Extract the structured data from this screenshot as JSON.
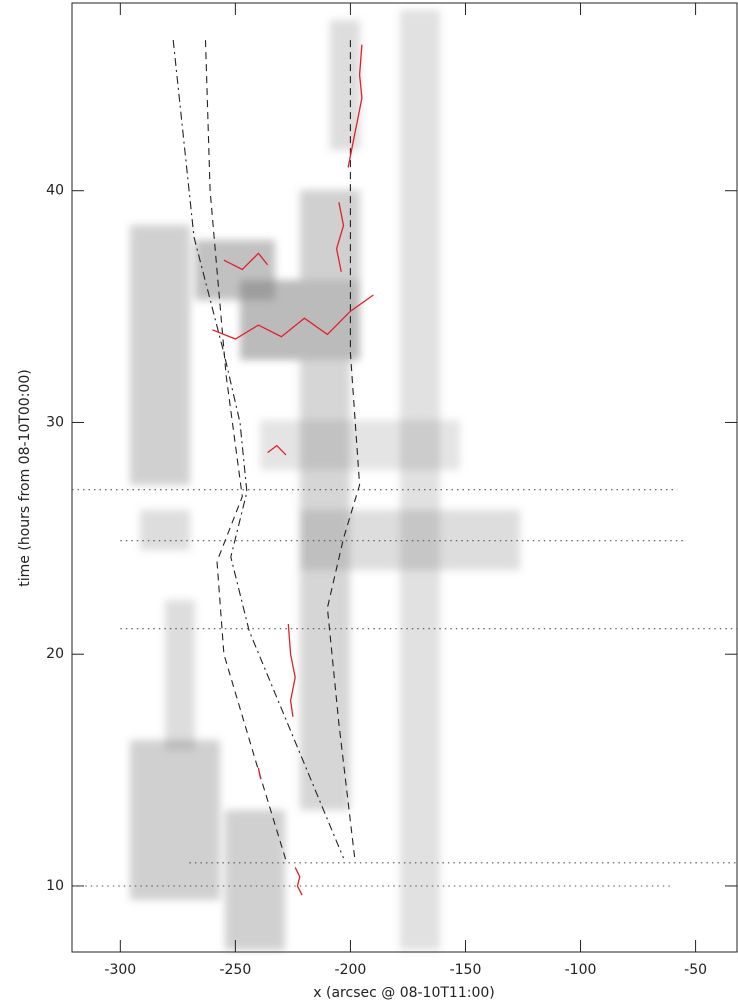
{
  "chart_data": {
    "type": "line",
    "xlabel": "x (arcsec @ 08-10T11:00)",
    "ylabel": "time (hours from 08-10T00:00)",
    "xlim": [
      -321,
      -32
    ],
    "ylim": [
      7.15,
      48.1
    ],
    "xticks": [
      -300,
      -250,
      -200,
      -150,
      -100,
      -50
    ],
    "yticks": [
      10,
      20,
      30,
      40
    ],
    "series": [
      {
        "style": "dotted",
        "color": "#555555",
        "x": [
          -321,
          -58
        ],
        "y": [
          27.1,
          27.1
        ]
      },
      {
        "style": "dotted",
        "color": "#555555",
        "x": [
          -300,
          -55
        ],
        "y": [
          24.9,
          24.9
        ]
      },
      {
        "style": "dotted",
        "color": "#555555",
        "x": [
          -300,
          -30
        ],
        "y": [
          21.1,
          21.1
        ]
      },
      {
        "style": "dotted",
        "color": "#555555",
        "x": [
          -270,
          -32
        ],
        "y": [
          11.0,
          11.0
        ]
      },
      {
        "style": "dotted",
        "color": "#555555",
        "x": [
          -320,
          -60
        ],
        "y": [
          10.0,
          10.0
        ]
      },
      {
        "style": "dashdot",
        "color": "#222222",
        "x": [
          -277,
          -268,
          -255,
          -248,
          -245,
          -252,
          -244,
          -203
        ],
        "y": [
          46.5,
          38,
          33,
          30,
          27,
          24.2,
          21,
          11.2
        ]
      },
      {
        "style": "dashed",
        "color": "#222222",
        "x": [
          -263,
          -261,
          -254,
          -247,
          -258,
          -255,
          -240,
          -228
        ],
        "y": [
          46.5,
          40,
          32,
          26.8,
          24,
          20,
          15,
          11.1
        ]
      },
      {
        "style": "dashed",
        "color": "#222222",
        "x": [
          -200,
          -200,
          -196,
          -203,
          -210,
          -205,
          -198
        ],
        "y": [
          46.5,
          33,
          27.3,
          25,
          22,
          17,
          11.1
        ]
      },
      {
        "style": "solid",
        "color": "#e0202a",
        "x": [
          -195,
          -196,
          -195,
          -197,
          -199,
          -201
        ],
        "y": [
          46.3,
          45,
          44,
          43,
          42,
          41
        ]
      },
      {
        "style": "solid",
        "color": "#e0202a",
        "x": [
          -227,
          -226,
          -224,
          -226,
          -225
        ],
        "y": [
          21.3,
          20,
          19,
          18,
          17.3
        ]
      },
      {
        "style": "solid",
        "color": "#e0202a",
        "x": [
          -224,
          -222,
          -223,
          -221
        ],
        "y": [
          10.8,
          10.4,
          10,
          9.6
        ]
      },
      {
        "style": "solid",
        "color": "#e0202a",
        "x": [
          -260,
          -250,
          -240,
          -230,
          -220,
          -210,
          -200,
          -190
        ],
        "y": [
          34,
          33.6,
          34.2,
          33.7,
          34.5,
          33.8,
          34.8,
          35.5
        ]
      },
      {
        "style": "solid",
        "color": "#e0202a",
        "x": [
          -255,
          -247,
          -240,
          -236
        ],
        "y": [
          37,
          36.6,
          37.3,
          36.8
        ]
      },
      {
        "style": "solid",
        "color": "#e0202a",
        "x": [
          -205,
          -203,
          -206,
          -204
        ],
        "y": [
          39.5,
          38.5,
          37.5,
          36.5
        ]
      },
      {
        "style": "solid",
        "color": "#e0202a",
        "x": [
          -236,
          -232,
          -228
        ],
        "y": [
          28.7,
          29,
          28.6
        ]
      },
      {
        "style": "solid",
        "color": "#e0202a",
        "x": [
          -240,
          -239
        ],
        "y": [
          15.1,
          14.6
        ]
      }
    ]
  }
}
